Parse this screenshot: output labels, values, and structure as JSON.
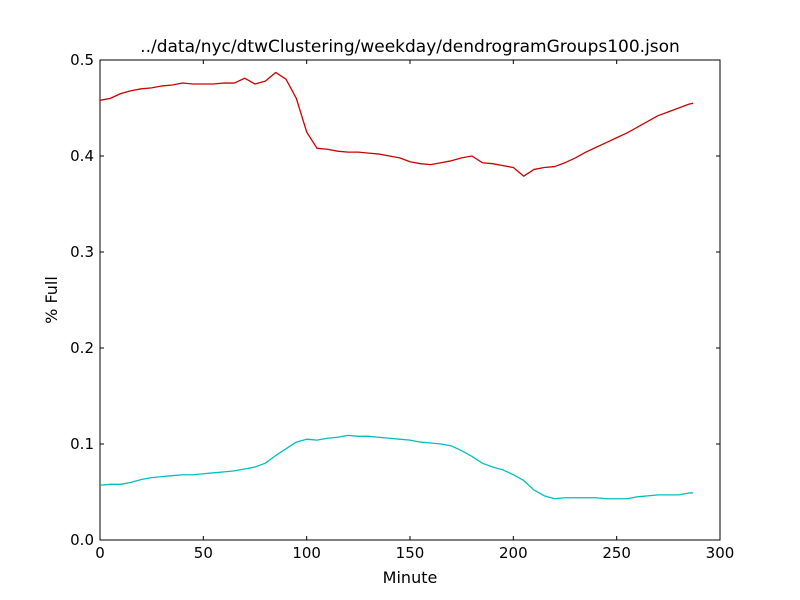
{
  "chart_data": {
    "type": "line",
    "title": "../data/nyc/dtwClustering/weekday/dendrogramGroups100.json",
    "xlabel": "Minute",
    "ylabel": "% Full",
    "xlim": [
      0,
      300
    ],
    "ylim": [
      0.0,
      0.5
    ],
    "x_ticks": [
      "0",
      "50",
      "100",
      "150",
      "200",
      "250",
      "300"
    ],
    "y_ticks": [
      "0.0",
      "0.1",
      "0.2",
      "0.3",
      "0.4",
      "0.5"
    ],
    "grid": false,
    "legend": "none",
    "series": [
      {
        "color": "#cc0000",
        "x": [
          0,
          5,
          10,
          15,
          20,
          25,
          30,
          35,
          40,
          45,
          50,
          55,
          60,
          65,
          70,
          75,
          80,
          85,
          90,
          95,
          100,
          105,
          110,
          115,
          120,
          125,
          130,
          135,
          140,
          145,
          150,
          155,
          160,
          165,
          170,
          175,
          180,
          185,
          190,
          195,
          200,
          205,
          210,
          215,
          220,
          225,
          230,
          235,
          240,
          245,
          250,
          255,
          260,
          265,
          270,
          275,
          280,
          285,
          287
        ],
        "y": [
          0.458,
          0.46,
          0.465,
          0.468,
          0.47,
          0.471,
          0.473,
          0.474,
          0.476,
          0.475,
          0.475,
          0.475,
          0.476,
          0.476,
          0.481,
          0.475,
          0.478,
          0.487,
          0.48,
          0.46,
          0.425,
          0.408,
          0.407,
          0.405,
          0.404,
          0.404,
          0.403,
          0.402,
          0.4,
          0.398,
          0.394,
          0.392,
          0.391,
          0.393,
          0.395,
          0.398,
          0.4,
          0.393,
          0.392,
          0.39,
          0.388,
          0.379,
          0.386,
          0.388,
          0.389,
          0.393,
          0.398,
          0.404,
          0.409,
          0.414,
          0.419,
          0.424,
          0.43,
          0.436,
          0.442,
          0.446,
          0.45,
          0.454,
          0.455
        ]
      },
      {
        "color": "#00bfbf",
        "x": [
          0,
          5,
          10,
          15,
          20,
          25,
          30,
          35,
          40,
          45,
          50,
          55,
          60,
          65,
          70,
          75,
          80,
          85,
          90,
          95,
          100,
          105,
          110,
          115,
          120,
          125,
          130,
          135,
          140,
          145,
          150,
          155,
          160,
          165,
          170,
          175,
          180,
          185,
          190,
          195,
          200,
          205,
          210,
          215,
          220,
          225,
          230,
          235,
          240,
          245,
          250,
          255,
          260,
          265,
          270,
          275,
          280,
          285,
          287
        ],
        "y": [
          0.057,
          0.058,
          0.058,
          0.06,
          0.063,
          0.065,
          0.066,
          0.067,
          0.068,
          0.068,
          0.069,
          0.07,
          0.071,
          0.072,
          0.074,
          0.076,
          0.08,
          0.088,
          0.095,
          0.102,
          0.105,
          0.104,
          0.106,
          0.107,
          0.109,
          0.108,
          0.108,
          0.107,
          0.106,
          0.105,
          0.104,
          0.102,
          0.101,
          0.1,
          0.098,
          0.093,
          0.087,
          0.08,
          0.076,
          0.073,
          0.068,
          0.062,
          0.052,
          0.046,
          0.043,
          0.044,
          0.044,
          0.044,
          0.044,
          0.043,
          0.043,
          0.043,
          0.045,
          0.046,
          0.047,
          0.047,
          0.047,
          0.049,
          0.049
        ]
      }
    ]
  }
}
